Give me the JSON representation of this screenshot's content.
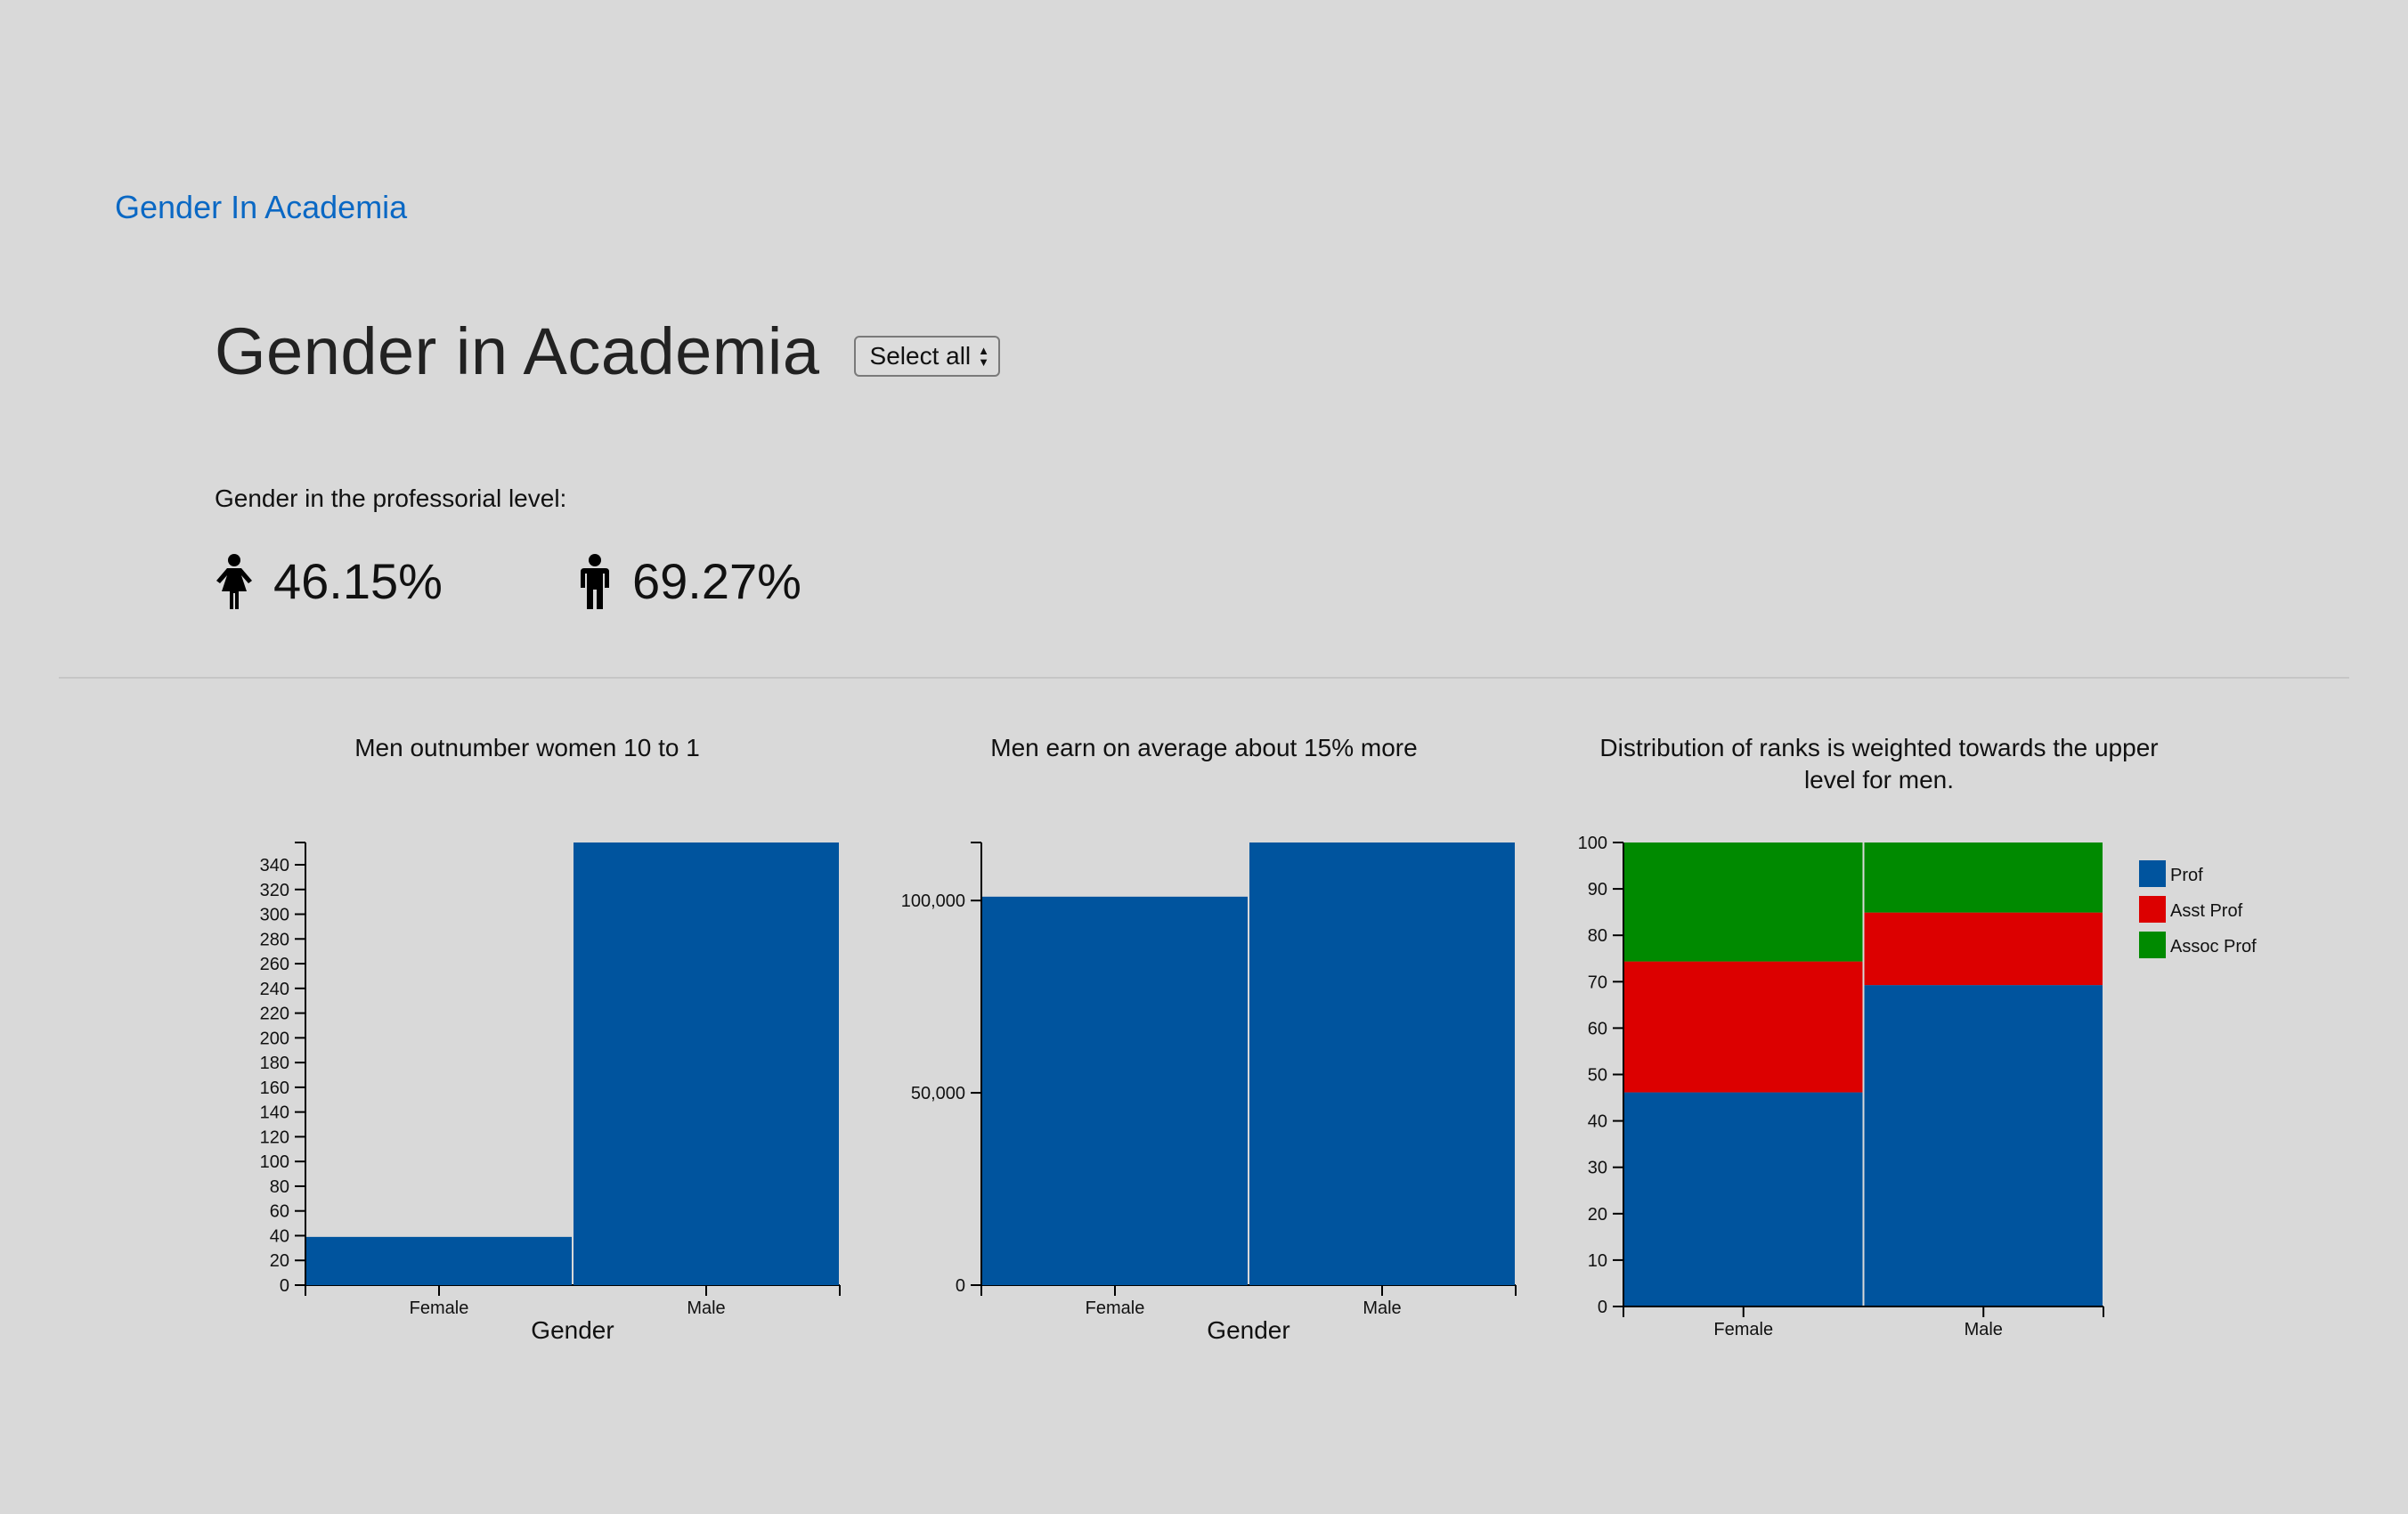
{
  "nav": {
    "brand": "Gender In Academia"
  },
  "header": {
    "title": "Gender in Academia",
    "select_value": "Select all"
  },
  "summary": {
    "label": "Gender in the professorial level:",
    "female_pct": "46.15%",
    "male_pct": "69.27%",
    "female_icon": "female-person-icon",
    "male_icon": "male-person-icon"
  },
  "colors": {
    "bar": "#00549e",
    "prof": "#00549e",
    "asst_prof": "#dc0000",
    "assoc_prof": "#008a00"
  },
  "chart_data": [
    {
      "type": "bar",
      "title": "Men outnumber women 10 to 1",
      "xlabel": "Gender",
      "ylabel": "",
      "categories": [
        "Female",
        "Male"
      ],
      "values": [
        39,
        358
      ],
      "ylim": [
        0,
        358
      ],
      "yticks": [
        0,
        20,
        40,
        60,
        80,
        100,
        120,
        140,
        160,
        180,
        200,
        220,
        240,
        260,
        280,
        300,
        320,
        340
      ],
      "ytick_labels": [
        "0",
        "20",
        "40",
        "60",
        "80",
        "100",
        "120",
        "140",
        "160",
        "180",
        "200",
        "220",
        "240",
        "260",
        "280",
        "300",
        "320",
        "340"
      ]
    },
    {
      "type": "bar",
      "title": "Men earn on average about 15% more",
      "xlabel": "Gender",
      "ylabel": "",
      "categories": [
        "Female",
        "Male"
      ],
      "values": [
        101002,
        115090
      ],
      "ylim": [
        0,
        115090
      ],
      "yticks": [
        0,
        50000,
        100000
      ],
      "ytick_labels": [
        "0",
        "50,000",
        "100,000"
      ]
    },
    {
      "type": "bar",
      "stacked": true,
      "title": "Distribution of ranks is weighted towards the upper level for men.",
      "xlabel": "",
      "ylabel": "",
      "categories": [
        "Female",
        "Male"
      ],
      "series": [
        {
          "name": "Prof",
          "values": [
            46.15,
            69.27
          ]
        },
        {
          "name": "Asst Prof",
          "values": [
            28.21,
            15.64
          ]
        },
        {
          "name": "Assoc Prof",
          "values": [
            25.64,
            15.09
          ]
        }
      ],
      "ylim": [
        0,
        100
      ],
      "yticks": [
        0,
        10,
        20,
        30,
        40,
        50,
        60,
        70,
        80,
        90,
        100
      ],
      "ytick_labels": [
        "0",
        "10",
        "20",
        "30",
        "40",
        "50",
        "60",
        "70",
        "80",
        "90",
        "100"
      ],
      "legend": "right"
    }
  ]
}
